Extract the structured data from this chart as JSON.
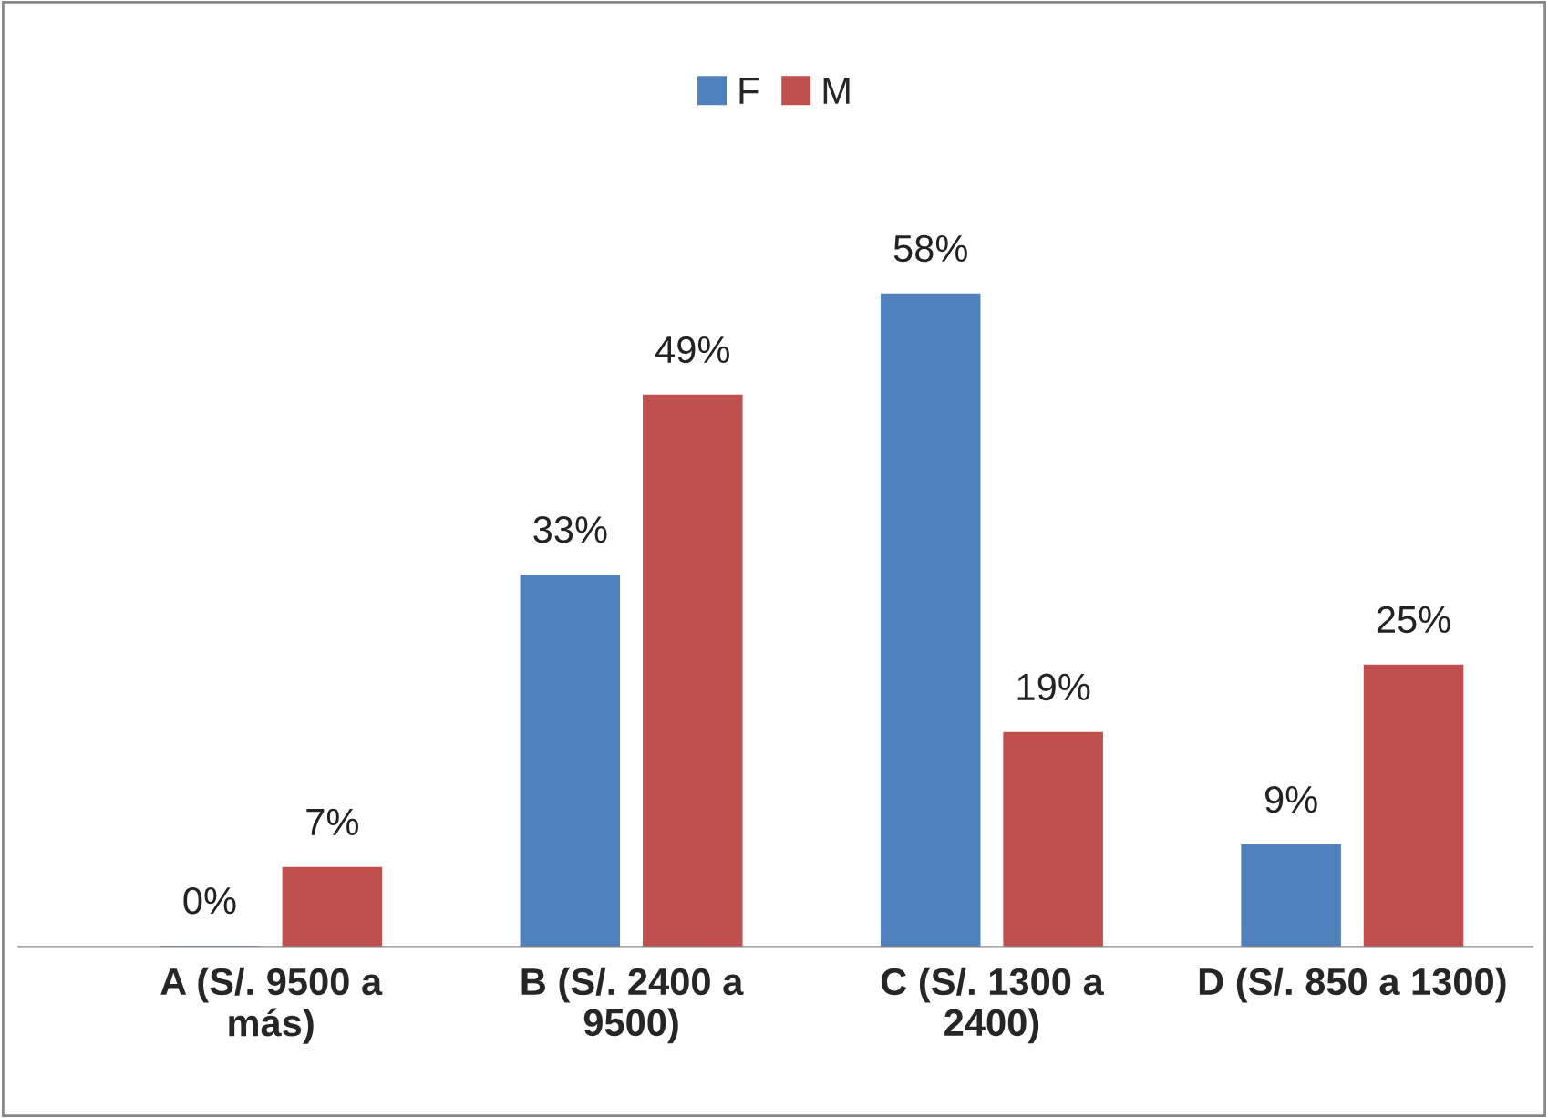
{
  "chart_data": {
    "type": "bar",
    "categories": [
      "A (S/. 9500 a\nmás)",
      "B (S/. 2400 a\n9500)",
      "C (S/. 1300 a\n2400)",
      "D (S/. 850 a 1300)"
    ],
    "series": [
      {
        "name": "F",
        "color": "#4f81bd",
        "values": [
          0,
          33,
          58,
          9
        ],
        "value_labels": [
          "0%",
          "33%",
          "58%",
          "9%"
        ]
      },
      {
        "name": "M",
        "color": "#c0504d",
        "values": [
          7,
          49,
          19,
          25
        ],
        "value_labels": [
          "7%",
          "49%",
          "19%",
          "25%"
        ]
      }
    ],
    "legend": "top",
    "grid": false
  }
}
